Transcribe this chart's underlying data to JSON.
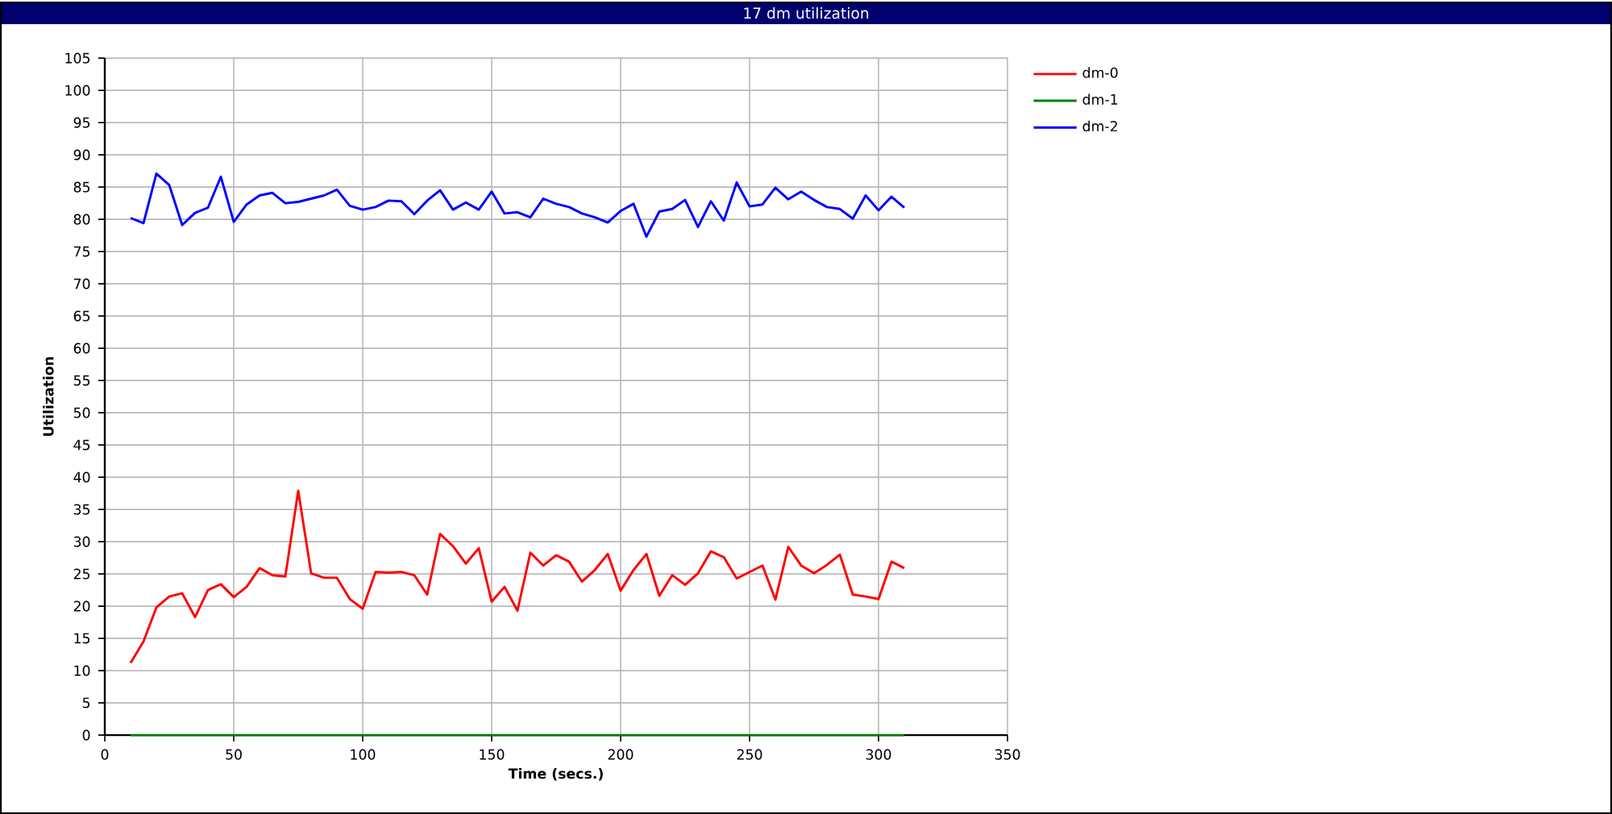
{
  "chart_data": {
    "type": "line",
    "title": "17 dm utilization",
    "xlabel": "Time (secs.)",
    "ylabel": "Utilization",
    "x": [
      10,
      15,
      20,
      25,
      30,
      35,
      40,
      45,
      50,
      55,
      60,
      65,
      70,
      75,
      80,
      85,
      90,
      95,
      100,
      105,
      110,
      115,
      120,
      125,
      130,
      135,
      140,
      145,
      150,
      155,
      160,
      165,
      170,
      175,
      180,
      185,
      190,
      195,
      200,
      205,
      210,
      215,
      220,
      225,
      230,
      235,
      240,
      245,
      250,
      255,
      260,
      265,
      270,
      275,
      280,
      285,
      290,
      295,
      300,
      305,
      310
    ],
    "series": [
      {
        "name": "dm-0",
        "color": "#ff0000",
        "values": [
          11.2,
          14.5,
          19.8,
          21.5,
          22,
          18.3,
          22.5,
          23.4,
          21.4,
          23,
          25.9,
          24.8,
          24.6,
          37.9,
          25.1,
          24.4,
          24.4,
          21.1,
          19.6,
          25.3,
          25.2,
          25.3,
          24.8,
          21.8,
          31.2,
          29.3,
          26.6,
          29,
          20.7,
          23,
          19.3,
          28.3,
          26.3,
          27.9,
          26.9,
          23.8,
          25.6,
          28.1,
          22.4,
          25.6,
          28.1,
          21.6,
          24.8,
          23.3,
          25.1,
          28.5,
          27.6,
          24.3,
          25.3,
          26.3,
          21,
          29.2,
          26.3,
          25.1,
          26.4,
          28,
          21.8,
          21.5,
          21.1,
          26.9,
          25.9
        ]
      },
      {
        "name": "dm-1",
        "color": "#008000",
        "values": [
          0,
          0,
          0,
          0,
          0,
          0,
          0,
          0,
          0,
          0,
          0,
          0,
          0,
          0,
          0,
          0,
          0,
          0,
          0,
          0,
          0,
          0,
          0,
          0,
          0,
          0,
          0,
          0,
          0,
          0,
          0,
          0,
          0,
          0,
          0,
          0,
          0,
          0,
          0,
          0,
          0,
          0,
          0,
          0,
          0,
          0,
          0,
          0,
          0,
          0,
          0,
          0,
          0,
          0,
          0,
          0,
          0,
          0,
          0,
          0,
          0
        ]
      },
      {
        "name": "dm-2",
        "color": "#0000ff",
        "values": [
          80.2,
          79.4,
          87.1,
          85.3,
          79.1,
          81,
          81.8,
          86.6,
          79.6,
          82.3,
          83.7,
          84.1,
          82.5,
          82.7,
          83.2,
          83.7,
          84.6,
          82.1,
          81.5,
          81.9,
          82.9,
          82.8,
          80.8,
          82.9,
          84.5,
          81.5,
          82.6,
          81.5,
          84.3,
          80.9,
          81.1,
          80.3,
          83.2,
          82.4,
          81.9,
          80.9,
          80.3,
          79.5,
          81.3,
          82.4,
          77.3,
          81.2,
          81.6,
          83,
          78.8,
          82.8,
          79.8,
          85.7,
          82,
          82.3,
          84.9,
          83.1,
          84.3,
          83,
          81.9,
          81.6,
          80.1,
          83.7,
          81.4,
          83.5,
          81.8
        ]
      }
    ],
    "xlim": [
      0,
      350
    ],
    "xticks": [
      0,
      50,
      100,
      150,
      200,
      250,
      300,
      350
    ],
    "ylim": [
      0,
      105
    ],
    "yticks": [
      0,
      5,
      10,
      15,
      20,
      25,
      30,
      35,
      40,
      45,
      50,
      55,
      60,
      65,
      70,
      75,
      80,
      85,
      90,
      95,
      100,
      105
    ],
    "grid": true,
    "legend": "top right",
    "marker": "none",
    "line_style": "solid"
  }
}
